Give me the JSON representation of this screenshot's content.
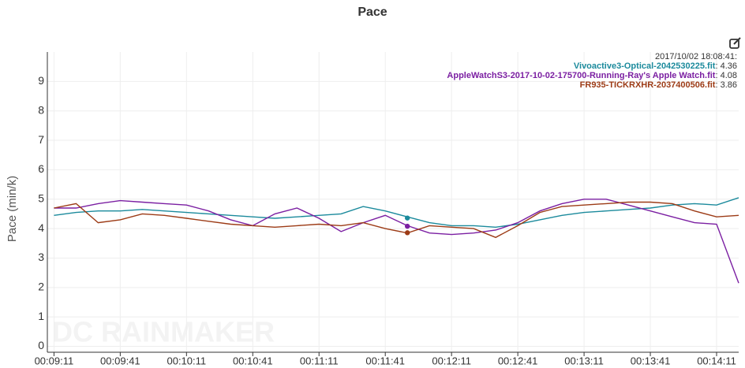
{
  "chart_data": {
    "type": "line",
    "title": "Pace",
    "y_label": "Pace (min/k)",
    "watermark": "DC RAINMAKER",
    "x": [
      "00:09:11",
      "00:09:21",
      "00:09:31",
      "00:09:41",
      "00:09:51",
      "00:10:01",
      "00:10:11",
      "00:10:21",
      "00:10:31",
      "00:10:41",
      "00:10:51",
      "00:11:01",
      "00:11:11",
      "00:11:21",
      "00:11:31",
      "00:11:41",
      "00:11:51",
      "00:12:01",
      "00:12:11",
      "00:12:21",
      "00:12:31",
      "00:12:41",
      "00:12:51",
      "00:13:01",
      "00:13:11",
      "00:13:21",
      "00:13:31",
      "00:13:41",
      "00:13:51",
      "00:14:01",
      "00:14:11",
      "00:14:21"
    ],
    "xlim": [
      "00:09:08",
      "00:14:21"
    ],
    "xticks": [
      "00:09:11",
      "00:09:41",
      "00:10:11",
      "00:10:41",
      "00:11:11",
      "00:11:41",
      "00:12:11",
      "00:12:41",
      "00:13:11",
      "00:13:41",
      "00:14:11"
    ],
    "ylim": [
      -0.2,
      10
    ],
    "yticks": [
      0,
      1,
      2,
      3,
      4,
      5,
      6,
      7,
      8,
      9
    ],
    "grid": true,
    "cursor": {
      "timestamp": "2017/10/02 18:08:41:",
      "x": "00:11:51"
    },
    "series": [
      {
        "name": "Vivoactive3-Optical-2042530225.fit",
        "color": "#1b8a9c",
        "cursor_value": 4.36,
        "values": [
          4.45,
          4.55,
          4.6,
          4.6,
          4.65,
          4.6,
          4.55,
          4.5,
          4.45,
          4.4,
          4.35,
          4.4,
          4.45,
          4.5,
          4.75,
          4.6,
          4.4,
          4.2,
          4.1,
          4.1,
          4.05,
          4.15,
          4.3,
          4.45,
          4.55,
          4.6,
          4.65,
          4.7,
          4.8,
          4.85,
          4.8,
          5.05
        ]
      },
      {
        "name": "AppleWatchS3-2017-10-02-175700-Running-Ray's Apple Watch.fit",
        "color": "#7b1fa2",
        "cursor_value": 4.08,
        "values": [
          4.7,
          4.7,
          4.85,
          4.95,
          4.9,
          4.85,
          4.8,
          4.6,
          4.3,
          4.1,
          4.5,
          4.7,
          4.35,
          3.9,
          4.2,
          4.45,
          4.1,
          3.85,
          3.8,
          3.85,
          3.95,
          4.2,
          4.6,
          4.85,
          5.0,
          5.0,
          4.8,
          4.6,
          4.4,
          4.2,
          4.15,
          2.15
        ]
      },
      {
        "name": "FR935-TICKRXHR-2037400506.fit",
        "color": "#9c3b16",
        "cursor_value": 3.86,
        "values": [
          4.7,
          4.85,
          4.2,
          4.3,
          4.5,
          4.45,
          4.35,
          4.25,
          4.15,
          4.1,
          4.05,
          4.1,
          4.15,
          4.1,
          4.2,
          4.0,
          3.85,
          4.1,
          4.05,
          4.0,
          3.7,
          4.1,
          4.55,
          4.75,
          4.8,
          4.85,
          4.9,
          4.9,
          4.85,
          4.6,
          4.4,
          4.45
        ]
      }
    ]
  }
}
